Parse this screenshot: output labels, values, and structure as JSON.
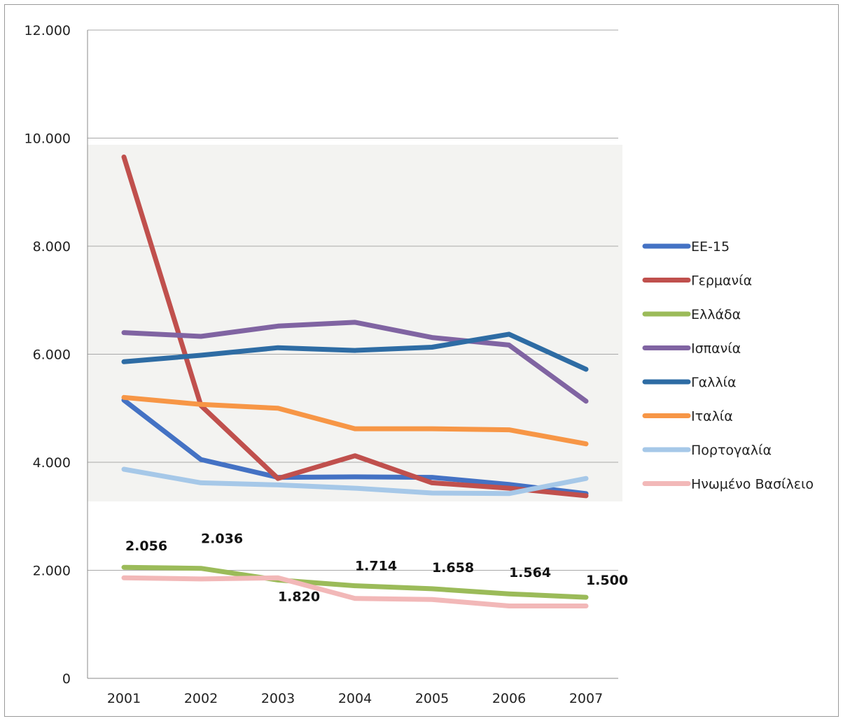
{
  "chart_data": {
    "type": "line",
    "categories": [
      "2001",
      "2002",
      "2003",
      "2004",
      "2005",
      "2006",
      "2007"
    ],
    "ylim": [
      0,
      12000
    ],
    "y_ticks": [
      0,
      2000,
      4000,
      6000,
      8000,
      10000,
      12000
    ],
    "y_tick_labels": [
      "0",
      "2.000",
      "4.000",
      "6.000",
      "8.000",
      "10.000",
      "12.000"
    ],
    "grid": true,
    "legend_position": "right",
    "series": [
      {
        "name": "ΕΕ-15",
        "color": "#4472c4",
        "values": [
          5150,
          4050,
          3720,
          3730,
          3720,
          3590,
          3420
        ]
      },
      {
        "name": "Γερμανία",
        "color": "#c0504d",
        "values": [
          9650,
          5050,
          3700,
          4120,
          3620,
          3520,
          3380
        ]
      },
      {
        "name": "Ελλάδα",
        "color": "#9bbb59",
        "values": [
          2056,
          2036,
          1820,
          1714,
          1658,
          1564,
          1500
        ]
      },
      {
        "name": "Ισπανία",
        "color": "#8064a2",
        "values": [
          6400,
          6330,
          6520,
          6590,
          6310,
          6170,
          5130
        ]
      },
      {
        "name": "Γαλλία",
        "color": "#2e6ca4",
        "values": [
          5860,
          5980,
          6120,
          6070,
          6130,
          6370,
          5720
        ]
      },
      {
        "name": "Ιταλία",
        "color": "#f79646",
        "values": [
          5200,
          5070,
          5000,
          4620,
          4620,
          4600,
          4340
        ]
      },
      {
        "name": "Πορτογαλία",
        "color": "#a6c8e8",
        "values": [
          3870,
          3620,
          3580,
          3520,
          3430,
          3420,
          3700
        ]
      },
      {
        "name": "Ηνωμένο Βασίλειο",
        "color": "#f2b8b8",
        "values": [
          1860,
          1840,
          1860,
          1480,
          1460,
          1340,
          1340
        ]
      }
    ],
    "data_labels": {
      "series": "Ελλάδα",
      "labels": [
        "2.056",
        "2.036",
        "1.820",
        "1.714",
        "1.658",
        "1.564",
        "1.500"
      ]
    }
  }
}
